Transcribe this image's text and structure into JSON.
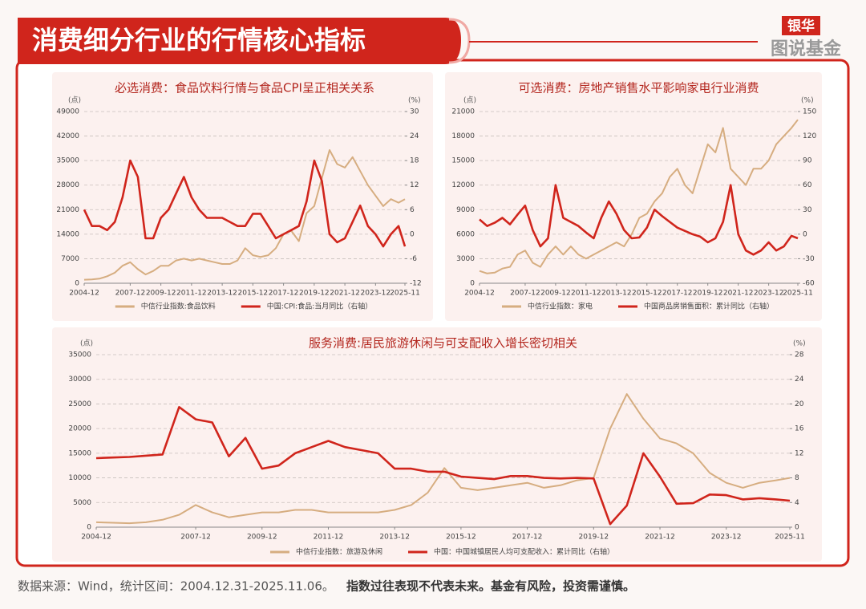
{
  "header": {
    "title": "消费细分行业的行情核心指标",
    "brand_top": "银华",
    "brand_bottom": "图说基金"
  },
  "footnote": {
    "source": "数据来源：Wind，统计区间：2004.12.31-2025.11.06。",
    "warning": "指数过往表现不代表未来。基金有风险，投资需谨慎。"
  },
  "chart_data": [
    {
      "type": "line",
      "title": "必选消费：食品饮料行情与食品CPI呈正相关关系",
      "y_unit": "(点)",
      "y2_unit": "(%)",
      "x": [
        "2004-12",
        "2005-06",
        "2005-12",
        "2006-06",
        "2006-12",
        "2007-06",
        "2007-12",
        "2008-06",
        "2008-12",
        "2009-06",
        "2009-12",
        "2010-06",
        "2010-12",
        "2011-06",
        "2011-12",
        "2012-06",
        "2012-12",
        "2013-06",
        "2013-12",
        "2014-06",
        "2014-12",
        "2015-06",
        "2015-12",
        "2016-06",
        "2016-12",
        "2017-06",
        "2017-12",
        "2018-06",
        "2018-12",
        "2019-06",
        "2019-12",
        "2020-06",
        "2020-12",
        "2021-06",
        "2021-12",
        "2022-06",
        "2022-12",
        "2023-06",
        "2023-12",
        "2024-06",
        "2024-12",
        "2025-06",
        "2025-11"
      ],
      "xlim": [
        "2004-12",
        "2025-11"
      ],
      "xticks": [
        "2004-12",
        "2007-12",
        "2009-12",
        "2011-12",
        "2013-12",
        "2015-12",
        "2017-12",
        "2019-12",
        "2021-12",
        "2023-12",
        "2025-11"
      ],
      "ylim": [
        0,
        49000
      ],
      "yticks": [
        0,
        7000,
        14000,
        21000,
        28000,
        35000,
        42000,
        49000
      ],
      "y2lim": [
        -12,
        30
      ],
      "y2ticks": [
        -12,
        -6,
        0,
        6,
        12,
        18,
        24,
        30
      ],
      "grid": true,
      "series": [
        {
          "name": "中信行业指数:食品饮料",
          "color": "#d6ad80",
          "values": [
            1000,
            1100,
            1300,
            2000,
            3000,
            5000,
            6000,
            4000,
            2500,
            3500,
            5000,
            5000,
            6500,
            7000,
            6500,
            7000,
            6500,
            6000,
            5500,
            5500,
            6500,
            10000,
            8000,
            7500,
            8000,
            10000,
            14000,
            15000,
            12000,
            20000,
            22000,
            30000,
            38000,
            34000,
            33000,
            36000,
            32000,
            28000,
            25000,
            22000,
            24000,
            23000,
            24000
          ]
        },
        {
          "name": "中国:CPI:食品:当月同比（右轴）",
          "color": "#d0251c",
          "axis": "y2",
          "values": [
            6,
            2,
            2,
            1,
            3,
            9,
            18,
            14,
            -1,
            -1,
            4,
            6,
            10,
            14,
            9,
            6,
            4,
            4,
            4,
            3,
            2,
            2,
            5,
            5,
            2,
            -1,
            0,
            1,
            2,
            8,
            18,
            13,
            0,
            -2,
            -1,
            3,
            7,
            2,
            0,
            -3,
            0,
            2,
            -3
          ]
        }
      ]
    },
    {
      "type": "line",
      "title": "可选消费：房地产销售水平影响家电行业消费",
      "y_unit": "(点)",
      "y2_unit": "(%)",
      "x": [
        "2004-12",
        "2005-06",
        "2005-12",
        "2006-06",
        "2006-12",
        "2007-06",
        "2007-12",
        "2008-06",
        "2008-12",
        "2009-06",
        "2009-12",
        "2010-06",
        "2010-12",
        "2011-06",
        "2011-12",
        "2012-06",
        "2012-12",
        "2013-06",
        "2013-12",
        "2014-06",
        "2014-12",
        "2015-06",
        "2015-12",
        "2016-06",
        "2016-12",
        "2017-06",
        "2017-12",
        "2018-06",
        "2018-12",
        "2019-06",
        "2019-12",
        "2020-06",
        "2020-12",
        "2021-06",
        "2021-12",
        "2022-06",
        "2022-12",
        "2023-06",
        "2023-12",
        "2024-06",
        "2024-12",
        "2025-06",
        "2025-11"
      ],
      "xlim": [
        "2004-12",
        "2025-11"
      ],
      "xticks": [
        "2004-12",
        "2007-12",
        "2009-12",
        "2011-12",
        "2013-12",
        "2015-12",
        "2017-12",
        "2019-12",
        "2021-12",
        "2023-12",
        "2025-11"
      ],
      "ylim": [
        0,
        21000
      ],
      "yticks": [
        0,
        3000,
        6000,
        9000,
        12000,
        15000,
        18000,
        21000
      ],
      "y2lim": [
        -60,
        150
      ],
      "y2ticks": [
        -60,
        -30,
        0,
        30,
        60,
        90,
        120,
        150
      ],
      "grid": true,
      "series": [
        {
          "name": "中信行业指数：家电",
          "color": "#d6ad80",
          "values": [
            1500,
            1200,
            1300,
            1800,
            2000,
            3500,
            4000,
            2500,
            2000,
            3500,
            4500,
            3500,
            4500,
            3500,
            3000,
            3500,
            4000,
            4500,
            5000,
            4500,
            6000,
            8000,
            8500,
            10000,
            11000,
            13000,
            14000,
            12000,
            11000,
            14000,
            17000,
            16000,
            19000,
            14000,
            13000,
            12000,
            14000,
            14000,
            15000,
            17000,
            18000,
            19000,
            20000
          ]
        },
        {
          "name": "中国商品房销售面积：累计同比（右轴）",
          "color": "#d0251c",
          "axis": "y2",
          "values": [
            18,
            10,
            14,
            20,
            12,
            24,
            35,
            5,
            -15,
            -5,
            60,
            20,
            15,
            10,
            2,
            -5,
            20,
            40,
            25,
            5,
            -5,
            -4,
            8,
            30,
            22,
            15,
            8,
            4,
            0,
            -3,
            -10,
            -5,
            15,
            60,
            0,
            -20,
            -25,
            -20,
            -10,
            -20,
            -15,
            -2,
            -5
          ]
        }
      ]
    },
    {
      "type": "line",
      "title": "服务消费:居民旅游休闲与可支配收入增长密切相关",
      "y_unit": "(点)",
      "y2_unit": "(%)",
      "x": [
        "2004-12",
        "2005-06",
        "2005-12",
        "2006-06",
        "2006-12",
        "2007-06",
        "2007-12",
        "2008-06",
        "2008-12",
        "2009-06",
        "2009-12",
        "2010-06",
        "2010-12",
        "2011-06",
        "2011-12",
        "2012-06",
        "2012-12",
        "2013-06",
        "2013-12",
        "2014-06",
        "2014-12",
        "2015-06",
        "2015-12",
        "2016-06",
        "2016-12",
        "2017-06",
        "2017-12",
        "2018-06",
        "2018-12",
        "2019-06",
        "2019-12",
        "2020-06",
        "2020-12",
        "2021-06",
        "2021-12",
        "2022-06",
        "2022-12",
        "2023-06",
        "2023-12",
        "2024-06",
        "2024-12",
        "2025-06",
        "2025-11"
      ],
      "xlim": [
        "2004-12",
        "2025-11"
      ],
      "xticks": [
        "2004-12",
        "2007-12",
        "2009-12",
        "2011-12",
        "2013-12",
        "2015-12",
        "2017-12",
        "2019-12",
        "2021-12",
        "2023-12",
        "2025-11"
      ],
      "ylim": [
        0,
        35000
      ],
      "yticks": [
        0,
        5000,
        10000,
        15000,
        20000,
        25000,
        30000,
        35000
      ],
      "y2lim": [
        0,
        28
      ],
      "y2ticks": [
        0,
        4,
        8,
        12,
        16,
        20,
        24,
        28
      ],
      "grid": true,
      "series": [
        {
          "name": "中信行业指数：旅游及休闲",
          "color": "#d6ad80",
          "values": [
            1000,
            900,
            800,
            1000,
            1500,
            2500,
            4500,
            3000,
            2000,
            2500,
            3000,
            3000,
            3500,
            3500,
            3000,
            3000,
            3000,
            3000,
            3500,
            4500,
            7000,
            12000,
            8000,
            7500,
            8000,
            8500,
            9000,
            8000,
            8500,
            9500,
            10000,
            20000,
            27000,
            22000,
            18000,
            17000,
            15000,
            11000,
            9000,
            8000,
            9000,
            9500,
            10000
          ]
        },
        {
          "name": "中国：中国城镇居民人均可支配收入：累计同比（右轴）",
          "color": "#d0251c",
          "axis": "y2",
          "values": [
            11.2,
            11.3,
            11.4,
            11.6,
            11.8,
            19.5,
            17.5,
            17,
            11.5,
            14.5,
            9.5,
            10,
            12,
            13,
            14,
            13,
            12.5,
            12,
            9.5,
            9.5,
            9,
            9,
            8.2,
            8,
            7.8,
            8.3,
            8.3,
            8,
            7.9,
            8,
            7.9,
            0.5,
            3.5,
            12,
            8.2,
            3.8,
            3.9,
            5.3,
            5.2,
            4.5,
            4.7,
            4.5,
            4.3
          ]
        }
      ]
    }
  ]
}
